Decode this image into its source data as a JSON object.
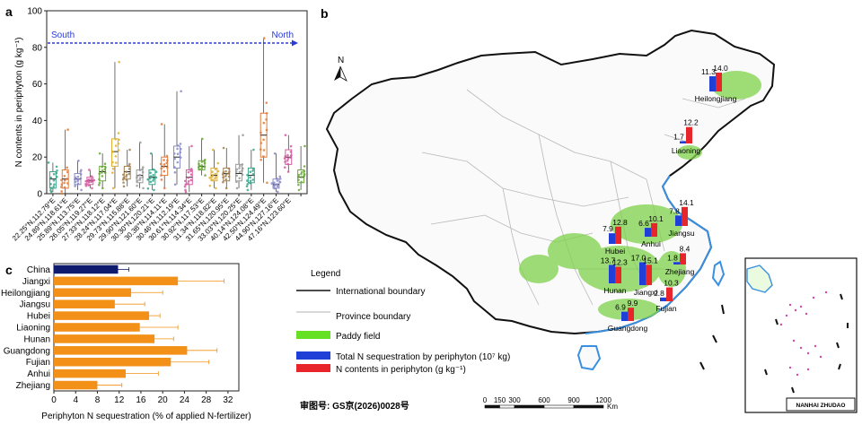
{
  "chart_data": [
    {
      "panel": "a",
      "type": "scatter",
      "title": "",
      "ylabel": "N contents in periphyton (g kg⁻¹)",
      "ylim": [
        0,
        100
      ],
      "yticks": [
        0,
        20,
        40,
        60,
        80,
        100
      ],
      "direction": {
        "left": "South",
        "right": "North"
      },
      "sites": [
        {
          "label": "22.25°N,112.79°E",
          "color": "#3aa58a",
          "min": 1,
          "q1": 3,
          "median": 8,
          "q3": 12,
          "max": 17
        },
        {
          "label": "24.89°N,118.61°E",
          "color": "#e07a3a",
          "min": 0,
          "q1": 3,
          "median": 8,
          "q3": 13,
          "max": 35
        },
        {
          "label": "25.89°N,113.75°E",
          "color": "#8a8ac8",
          "min": 2,
          "q1": 5,
          "median": 8,
          "q3": 11,
          "max": 18
        },
        {
          "label": "26.05°N,119.27°E",
          "color": "#d65aa0",
          "min": 3,
          "q1": 5,
          "median": 7,
          "q3": 9,
          "max": 13
        },
        {
          "label": "27.33°N,118.12°E",
          "color": "#6aa83a",
          "min": 3,
          "q1": 7,
          "median": 12,
          "q3": 15,
          "max": 22
        },
        {
          "label": "28.24°N,117.04°E",
          "color": "#e0b030",
          "min": 3,
          "q1": 15,
          "median": 23,
          "q3": 30,
          "max": 72
        },
        {
          "label": "29.73°N,115.88°E",
          "color": "#a08050",
          "min": 4,
          "q1": 8,
          "median": 12,
          "q3": 15,
          "max": 24
        },
        {
          "label": "29.90°N,121.60°E",
          "color": "#9a9a9a",
          "min": 3,
          "q1": 6,
          "median": 10,
          "q3": 13,
          "max": 28
        },
        {
          "label": "30.30°N,120.21°E",
          "color": "#3aa58a",
          "min": 2,
          "q1": 5,
          "median": 9,
          "q3": 13,
          "max": 22
        },
        {
          "label": "30.38°N,114.11°E",
          "color": "#e07a3a",
          "min": 3,
          "q1": 10,
          "median": 15,
          "q3": 20,
          "max": 38
        },
        {
          "label": "30.46°N,112.19°E",
          "color": "#8a8ac8",
          "min": 5,
          "q1": 14,
          "median": 20,
          "q3": 26,
          "max": 56
        },
        {
          "label": "30.61°N,114.34°E",
          "color": "#d65aa0",
          "min": 1,
          "q1": 5,
          "median": 9,
          "q3": 13,
          "max": 26
        },
        {
          "label": "30.92°N,117.53°E",
          "color": "#6aa83a",
          "min": 10,
          "q1": 13,
          "median": 15,
          "q3": 18,
          "max": 30
        },
        {
          "label": "31.34°N,118.82°E",
          "color": "#e0b030",
          "min": 3,
          "q1": 7,
          "median": 10,
          "q3": 14,
          "max": 24
        },
        {
          "label": "31.65°N,120.95°E",
          "color": "#a08050",
          "min": 3,
          "q1": 7,
          "median": 11,
          "q3": 14,
          "max": 25
        },
        {
          "label": "33.03°N,120.25°E",
          "color": "#9a9a9a",
          "min": 3,
          "q1": 7,
          "median": 11,
          "q3": 16,
          "max": 32
        },
        {
          "label": "40.14°N,124.08°E",
          "color": "#3aa58a",
          "min": 2,
          "q1": 6,
          "median": 10,
          "q3": 14,
          "max": 24
        },
        {
          "label": "42.50°N,124.49°E",
          "color": "#e07a3a",
          "min": 6,
          "q1": 20,
          "median": 32,
          "q3": 44,
          "max": 85
        },
        {
          "label": "44.90°N,127.16°E",
          "color": "#8a8ac8",
          "min": 1,
          "q1": 3,
          "median": 5,
          "q3": 8,
          "max": 22
        },
        {
          "label": "47.16°N,123.60°E",
          "color": "#d65aa0",
          "min": 12,
          "q1": 16,
          "median": 20,
          "q3": 24,
          "max": 32
        },
        {
          "label": "",
          "color": "#6aa83a",
          "min": 2,
          "q1": 6,
          "median": 9,
          "q3": 13,
          "max": 26
        }
      ]
    },
    {
      "panel": "b",
      "type": "bar",
      "title": "",
      "legend_title": "Legend",
      "legend": {
        "international": "International boundary",
        "province": "Province boundary",
        "paddy": "Paddy field",
        "total_n": "Total N sequestration by periphyton (10⁷ kg)",
        "n_content": "N contents in periphyton (g kg⁻¹)"
      },
      "north_label": "N",
      "scale_ticks": [
        "0",
        "150",
        "300",
        "600",
        "900",
        "1200"
      ],
      "scale_unit": "Km",
      "approval_number": "审图号: GS京(2026)0028号",
      "inset_label": "NANHAI ZHUDAO",
      "series": [
        {
          "name": "Total N sequestration by periphyton (10⁷ kg)",
          "color": "#1f3fd6"
        },
        {
          "name": "N contents in periphyton (g kg⁻¹)",
          "color": "#e8252b"
        }
      ],
      "provinces": [
        {
          "name": "Heilongjiang",
          "total_label": "11.3",
          "content_label": "14.0",
          "total": 11.3,
          "content": 14.0
        },
        {
          "name": "Liaoning",
          "total_label": "1.7",
          "content_label": "12.2",
          "total": 1.7,
          "content": 12.2
        },
        {
          "name": "Jiangsu",
          "total_label": "7.8",
          "content_label": "14.1",
          "total": 7.8,
          "content": 14.1
        },
        {
          "name": "Anhui",
          "total_label": "6.6",
          "content_label": "10.1",
          "total": 6.6,
          "content": 10.1
        },
        {
          "name": "Hubei",
          "total_label": "7.9",
          "content_label": "12.8",
          "total": 7.9,
          "content": 12.8
        },
        {
          "name": "Zhejiang",
          "total_label": "1.8",
          "content_label": "8.4",
          "total": 1.8,
          "content": 8.4
        },
        {
          "name": "Hunan",
          "total_label": "13.7",
          "content_label": "12.3",
          "total": 13.7,
          "content": 12.3
        },
        {
          "name": "Jiangxi",
          "total_label": "17.0",
          "content_label": "15.1",
          "total": 17.0,
          "content": 15.1
        },
        {
          "name": "Fujian",
          "total_label": "2.8",
          "content_label": "10.3",
          "total": 2.8,
          "content": 10.3
        },
        {
          "name": "Guangdong",
          "total_label": "6.9",
          "content_label": "9.9",
          "total": 6.9,
          "content": 9.9
        }
      ]
    },
    {
      "panel": "c",
      "type": "bar",
      "orientation": "horizontal",
      "xlabel": "Periphyton N sequestration (% of applied N-fertilizer)",
      "xlim": [
        0,
        34
      ],
      "xticks": [
        0,
        4,
        8,
        12,
        16,
        20,
        24,
        28,
        32
      ],
      "categories": [
        "China",
        "Jiangxi",
        "Heilongjiang",
        "Jiangsu",
        "Hubei",
        "Liaoning",
        "Hunan",
        "Guangdong",
        "Fujian",
        "Anhui",
        "Zhejiang"
      ],
      "values": [
        11.8,
        22.8,
        14.2,
        11.2,
        17.5,
        15.8,
        18.5,
        24.5,
        21.5,
        13.2,
        8.0
      ],
      "errors": [
        2.0,
        8.5,
        5.8,
        5.5,
        2.0,
        7.0,
        3.5,
        5.5,
        7.0,
        6.0,
        4.5
      ],
      "colors": [
        "#0d1a6e",
        "#f39017",
        "#f39017",
        "#f39017",
        "#f39017",
        "#f39017",
        "#f39017",
        "#f39017",
        "#f39017",
        "#f39017",
        "#f39017"
      ]
    }
  ],
  "panel_labels": {
    "a": "a",
    "b": "b",
    "c": "c"
  }
}
